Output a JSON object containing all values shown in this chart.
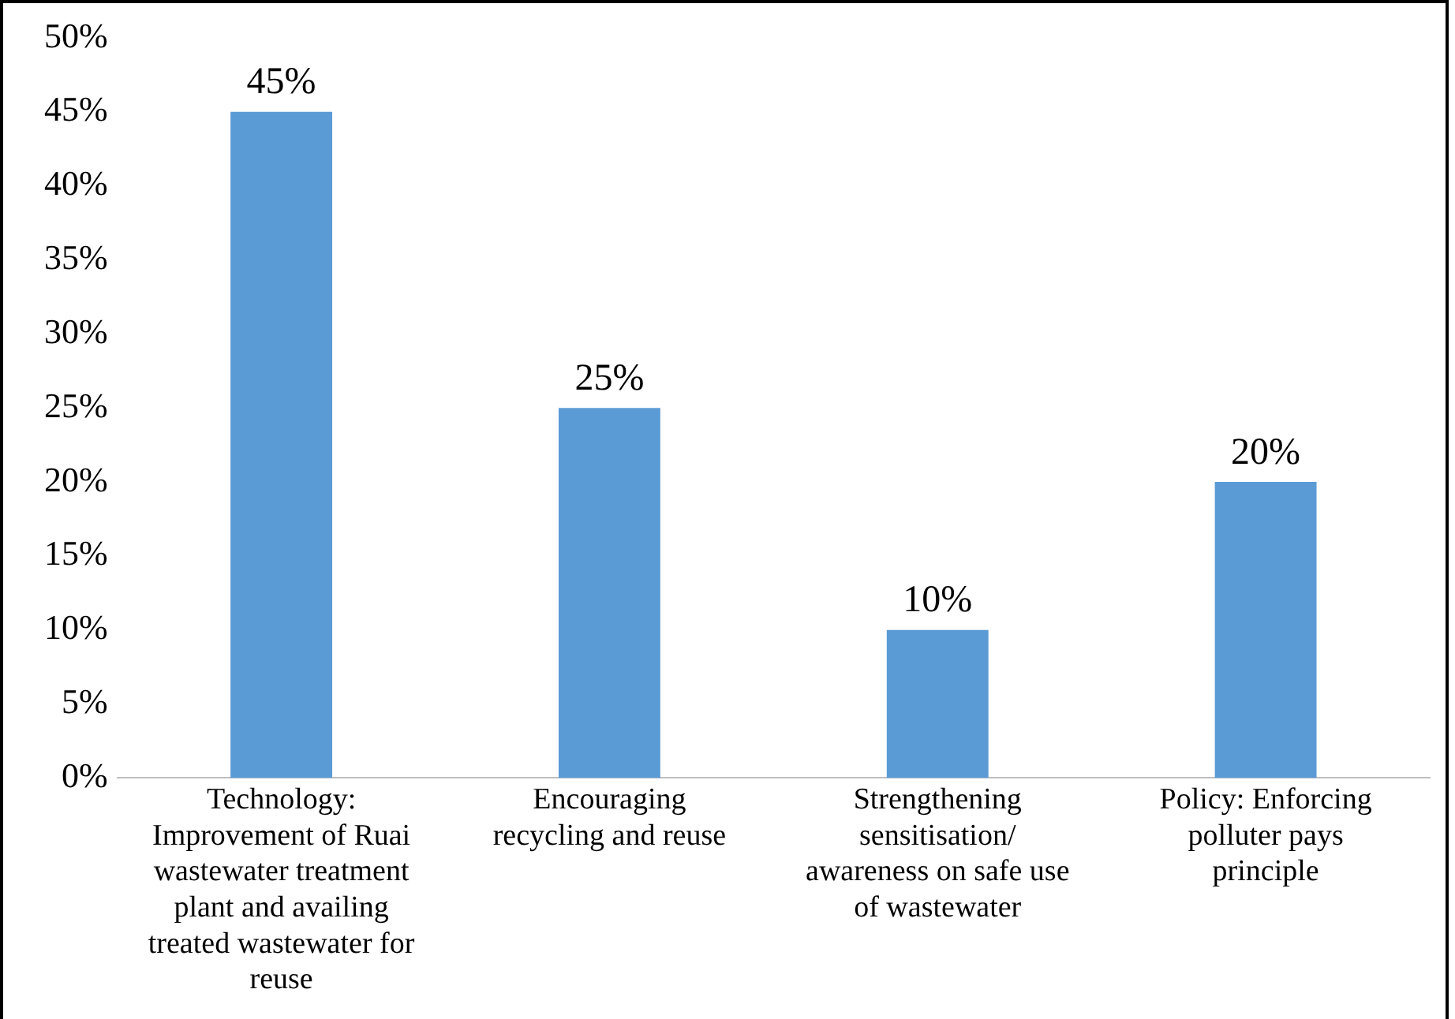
{
  "chart_data": {
    "type": "bar",
    "categories": [
      "Technology: Improvement of Ruai wastewater treatment plant and availing treated wastewater for reuse",
      "Encouraging recycling and reuse",
      "Strengthening sensitisation/ awareness on safe use of wastewater",
      "Policy: Enforcing polluter pays principle"
    ],
    "values": [
      45,
      25,
      10,
      20
    ],
    "value_labels": [
      "45%",
      "25%",
      "10%",
      "20%"
    ],
    "color": "#5b9bd5",
    "ylim": [
      0,
      50
    ],
    "yticks": [
      {
        "value": 0,
        "label": "0%"
      },
      {
        "value": 5,
        "label": "5%"
      },
      {
        "value": 10,
        "label": "10%"
      },
      {
        "value": 15,
        "label": "15%"
      },
      {
        "value": 20,
        "label": "20%"
      },
      {
        "value": 25,
        "label": "25%"
      },
      {
        "value": 30,
        "label": "30%"
      },
      {
        "value": 35,
        "label": "35%"
      },
      {
        "value": 40,
        "label": "40%"
      },
      {
        "value": 45,
        "label": "45%"
      },
      {
        "value": 50,
        "label": "50%"
      }
    ],
    "grid": false,
    "legend": false
  }
}
